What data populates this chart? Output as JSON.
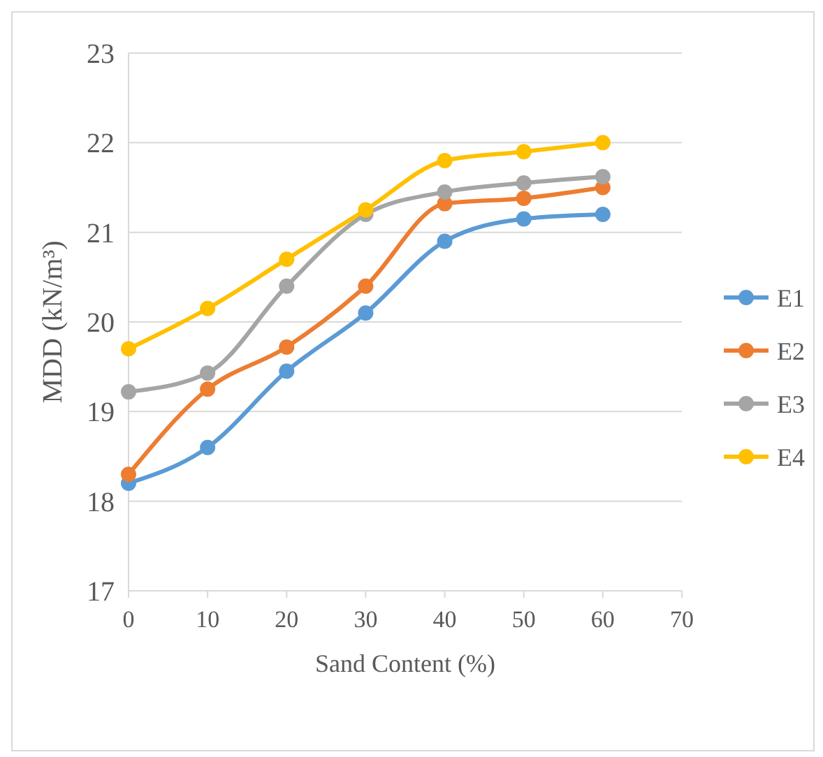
{
  "chart_data": {
    "type": "line",
    "xlabel": "Sand Content (%)",
    "ylabel": "MDD (kN/m³)",
    "x": [
      0,
      10,
      20,
      30,
      40,
      50,
      60
    ],
    "xlim": [
      0,
      70
    ],
    "xticks": [
      0,
      10,
      20,
      30,
      40,
      50,
      60,
      70
    ],
    "ylim": [
      17,
      23
    ],
    "yticks": [
      17,
      18,
      19,
      20,
      21,
      22,
      23
    ],
    "grid": "y",
    "legend": "right",
    "marker": "circle",
    "line_style": "solid",
    "series": [
      {
        "name": "E1",
        "color": "#5b9bd5",
        "values": [
          18.2,
          18.6,
          19.45,
          20.1,
          20.9,
          21.15,
          21.2
        ]
      },
      {
        "name": "E2",
        "color": "#ed7d31",
        "values": [
          18.3,
          19.25,
          19.72,
          20.4,
          21.32,
          21.38,
          21.5
        ]
      },
      {
        "name": "E3",
        "color": "#a5a5a5",
        "values": [
          19.22,
          19.43,
          20.4,
          21.2,
          21.45,
          21.55,
          21.62
        ]
      },
      {
        "name": "E4",
        "color": "#ffc000",
        "values": [
          19.7,
          20.15,
          20.7,
          21.25,
          21.8,
          21.9,
          22.0
        ]
      }
    ]
  }
}
